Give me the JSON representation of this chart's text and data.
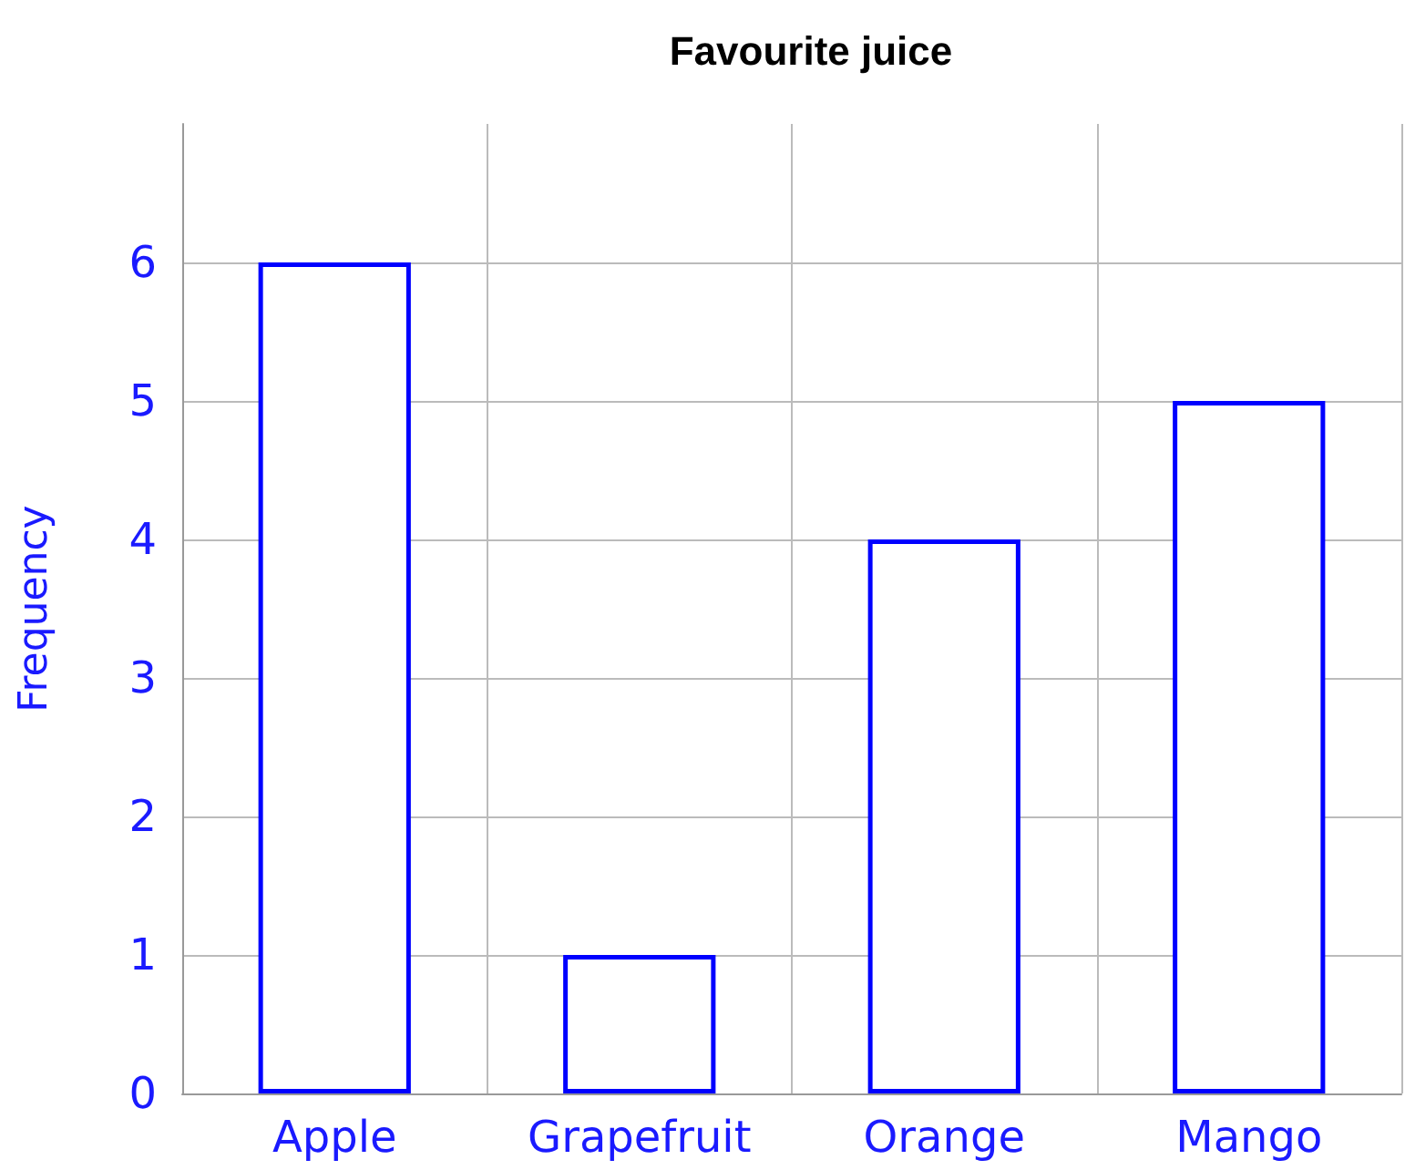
{
  "chart_data": {
    "type": "bar",
    "title": "Favourite juice",
    "ylabel": "Frequency",
    "categories": [
      "Apple",
      "Grapefruit",
      "Orange",
      "Mango"
    ],
    "values": [
      6,
      1,
      4,
      5
    ],
    "color": "#0000ff",
    "ylim": [
      0,
      7
    ],
    "yticks": [
      0,
      1,
      2,
      3,
      4,
      5,
      6
    ],
    "grid": true
  }
}
